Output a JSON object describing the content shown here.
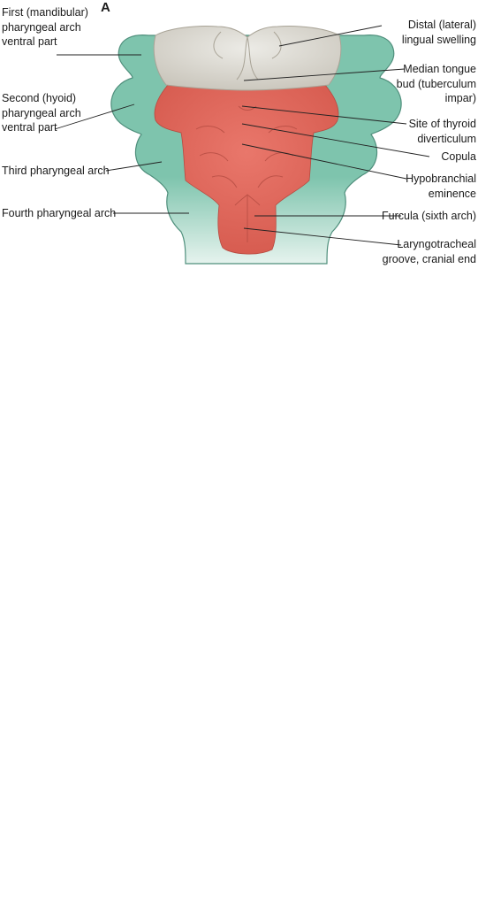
{
  "panel_letter": "A",
  "colors": {
    "arch_green": "#7ec4ad",
    "arch_outline": "#4f8f7c",
    "tongue_white": "#dedbd3",
    "eminence_red": "#e2685c",
    "leader_line": "#222222"
  },
  "labels_left": {
    "first_arch": [
      "First (mandibular)",
      "pharyngeal arch",
      "ventral part"
    ],
    "second_arch": [
      "Second (hyoid)",
      "pharyngeal arch",
      "ventral part"
    ],
    "third_arch": [
      "Third pharyngeal arch"
    ],
    "fourth_arch": [
      "Fourth pharyngeal arch"
    ]
  },
  "labels_right": {
    "distal_swelling": [
      "Distal (lateral)",
      "lingual swelling"
    ],
    "median_bud": [
      "Median tongue",
      "bud (tuberculum",
      "impar)"
    ],
    "thyroid_site": [
      "Site of thyroid",
      "diverticulum"
    ],
    "copula": [
      "Copula"
    ],
    "hypobranchial": [
      "Hypobranchial",
      "eminence"
    ],
    "furcula": [
      "Furcula (sixth arch)"
    ],
    "laryngotracheal": [
      "Laryngotracheal",
      "groove, cranial end"
    ]
  }
}
